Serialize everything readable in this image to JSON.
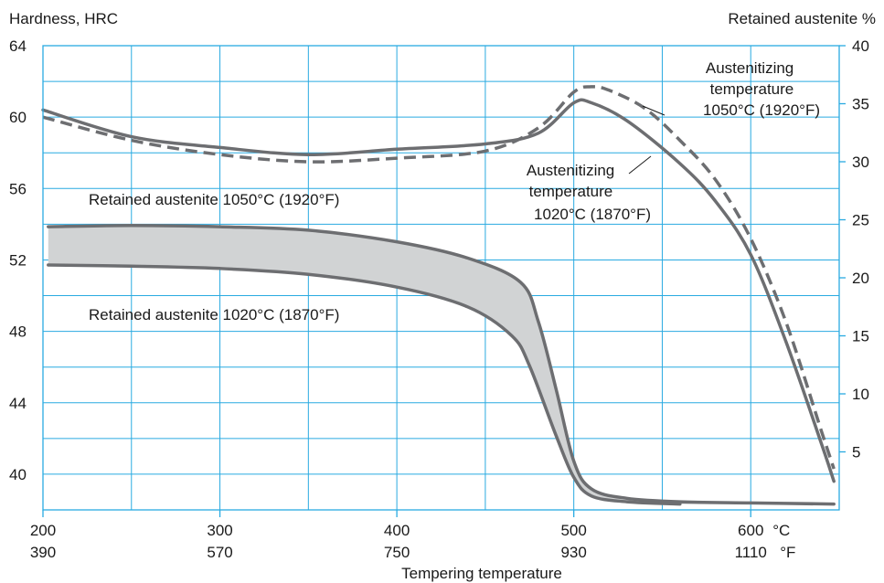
{
  "chart_data": {
    "type": "line",
    "xlabel": "Tempering temperature",
    "x_unit_c": "°C",
    "x_unit_f": "°F",
    "xlim": [
      200,
      650
    ],
    "x_ticks": [
      {
        "c": 200,
        "c_label": "200",
        "f_label": "390"
      },
      {
        "c": 300,
        "c_label": "300",
        "f_label": "570"
      },
      {
        "c": 400,
        "c_label": "400",
        "f_label": "750"
      },
      {
        "c": 500,
        "c_label": "500",
        "f_label": "930"
      },
      {
        "c": 600,
        "c_label": "600",
        "f_label": "1110"
      }
    ],
    "y_left": {
      "label": "Hardness, HRC",
      "lim": [
        38,
        64
      ],
      "ticks": [
        40,
        44,
        48,
        52,
        56,
        60,
        64
      ]
    },
    "y_right": {
      "label": "Retained austenite %",
      "lim": [
        0,
        40
      ],
      "ticks": [
        5,
        10,
        15,
        20,
        25,
        30,
        35,
        40
      ]
    },
    "grid": true,
    "series": [
      {
        "name": "Austenitizing temperature 1050°C (1920°F)",
        "axis": "left",
        "style": "dashed",
        "color": "#6d6e71",
        "points": [
          [
            200,
            60.0
          ],
          [
            250,
            58.7
          ],
          [
            300,
            57.9
          ],
          [
            350,
            57.5
          ],
          [
            400,
            57.7
          ],
          [
            450,
            58.1
          ],
          [
            480,
            59.4
          ],
          [
            500,
            61.4
          ],
          [
            510,
            61.7
          ],
          [
            520,
            61.5
          ],
          [
            540,
            60.5
          ],
          [
            560,
            58.7
          ],
          [
            580,
            56.5
          ],
          [
            600,
            53.2
          ],
          [
            620,
            48.5
          ],
          [
            640,
            42.4
          ],
          [
            647,
            40.3
          ]
        ]
      },
      {
        "name": "Austenitizing temperature 1020°C (1870°F)",
        "axis": "left",
        "style": "solid",
        "color": "#6d6e71",
        "points": [
          [
            200,
            60.4
          ],
          [
            250,
            58.9
          ],
          [
            300,
            58.3
          ],
          [
            350,
            57.9
          ],
          [
            400,
            58.2
          ],
          [
            450,
            58.5
          ],
          [
            480,
            59.1
          ],
          [
            500,
            60.8
          ],
          [
            510,
            60.8
          ],
          [
            530,
            59.8
          ],
          [
            560,
            57.4
          ],
          [
            580,
            55.3
          ],
          [
            600,
            52.3
          ],
          [
            620,
            47.4
          ],
          [
            640,
            41.7
          ],
          [
            647,
            39.6
          ]
        ]
      },
      {
        "name": "Retained austenite 1050°C (1920°F)",
        "axis": "right",
        "style": "solid",
        "color": "#6d6e71",
        "points": [
          [
            203,
            24.4
          ],
          [
            250,
            24.5
          ],
          [
            300,
            24.4
          ],
          [
            350,
            24.1
          ],
          [
            400,
            23.1
          ],
          [
            440,
            21.7
          ],
          [
            470,
            19.6
          ],
          [
            480,
            16.2
          ],
          [
            490,
            10.4
          ],
          [
            500,
            4.2
          ],
          [
            510,
            1.8
          ],
          [
            530,
            1.0
          ],
          [
            560,
            0.7
          ],
          [
            600,
            0.6
          ],
          [
            647,
            0.5
          ]
        ]
      },
      {
        "name": "Retained austenite 1020°C (1870°F)",
        "axis": "right",
        "style": "solid",
        "color": "#6d6e71",
        "points": [
          [
            203,
            21.1
          ],
          [
            250,
            21.0
          ],
          [
            300,
            20.8
          ],
          [
            350,
            20.3
          ],
          [
            400,
            19.2
          ],
          [
            440,
            17.5
          ],
          [
            465,
            15.0
          ],
          [
            475,
            12.4
          ],
          [
            490,
            6.4
          ],
          [
            500,
            2.8
          ],
          [
            510,
            1.2
          ],
          [
            530,
            0.7
          ],
          [
            560,
            0.5
          ]
        ]
      }
    ],
    "fill_between": {
      "upper": "Retained austenite 1050°C (1920°F)",
      "lower": "Retained austenite 1020°C (1870°F)",
      "color": "#d1d3d4"
    },
    "annotations": [
      {
        "lines": [
          "Austenitizing",
          "temperature",
          "1050°C (1920°F)"
        ]
      },
      {
        "lines": [
          "Austenitizing",
          "temperature",
          "1020°C (1870°F)"
        ]
      },
      {
        "lines": [
          "Retained austenite 1050°C (1920°F)"
        ]
      },
      {
        "lines": [
          "Retained austenite 1020°C (1870°F)"
        ]
      }
    ],
    "colors": {
      "grid": "#29aae1",
      "curve": "#6d6e71",
      "fill": "#d1d3d4"
    }
  }
}
